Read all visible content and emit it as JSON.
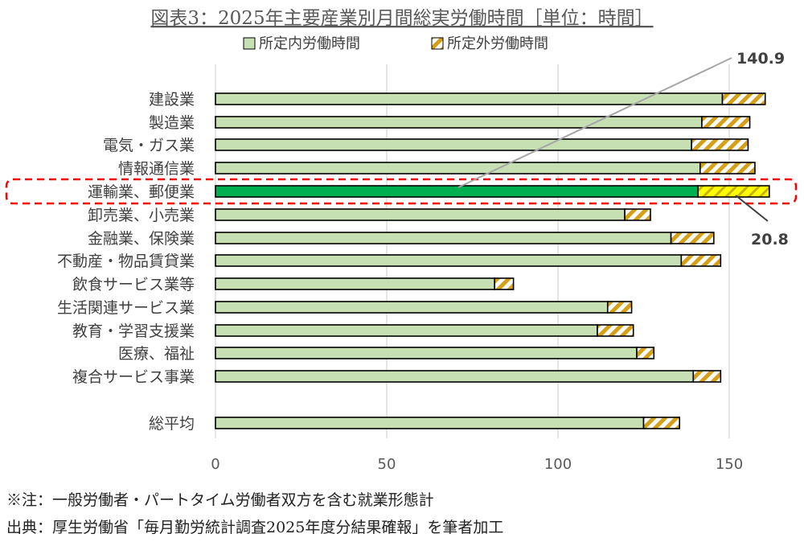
{
  "chart_data": {
    "type": "bar",
    "orientation": "horizontal",
    "stacked": true,
    "title": "図表3：2025年主要産業別月間総実労働時間［単位：時間］",
    "categories": [
      "建設業",
      "製造業",
      "電気・ガス業",
      "情報通信業",
      "運輸業、郵便業",
      "卸売業、小売業",
      "金融業、保険業",
      "不動産・物品賃貸業",
      "飲食サービス業等",
      "生活関連サービス業",
      "教育・学習支援業",
      "医療、福祉",
      "複合サービス事業",
      "総平均"
    ],
    "series": [
      {
        "name": "所定内労働時間",
        "color": "#c6e0b4",
        "highlight_color": "#00b050",
        "values": [
          148,
          142,
          139,
          141.5,
          140.9,
          119.5,
          133,
          136,
          81.5,
          114.5,
          111.5,
          123,
          139.5,
          125
        ]
      },
      {
        "name": "所定外労働時間",
        "color": "#d4a017",
        "highlight_color": "#ffff00",
        "pattern": "diagonal-stripes",
        "values": [
          12.5,
          14,
          16.5,
          16,
          20.8,
          7.5,
          12.5,
          11.5,
          5.5,
          7,
          10.5,
          5,
          8,
          10.5
        ]
      }
    ],
    "highlight_category": "運輸業、郵便業",
    "annotations": [
      {
        "category": "運輸業、郵便業",
        "series": "所定内労働時間",
        "text": "140.9"
      },
      {
        "category": "運輸業、郵便業",
        "series": "所定外労働時間",
        "text": "20.8"
      }
    ],
    "xlim": [
      0,
      165
    ],
    "xticks": [
      0,
      50,
      100,
      150
    ],
    "xlabel": "",
    "ylabel": "",
    "grid": "vertical",
    "legend": "top-center"
  },
  "notes": [
    "※注：一般労働者・パートタイム労働者双方を含む就業形態計",
    "出典：厚生労働省「毎月勤労統計調査2025年度分結果確報」を筆者加工"
  ]
}
